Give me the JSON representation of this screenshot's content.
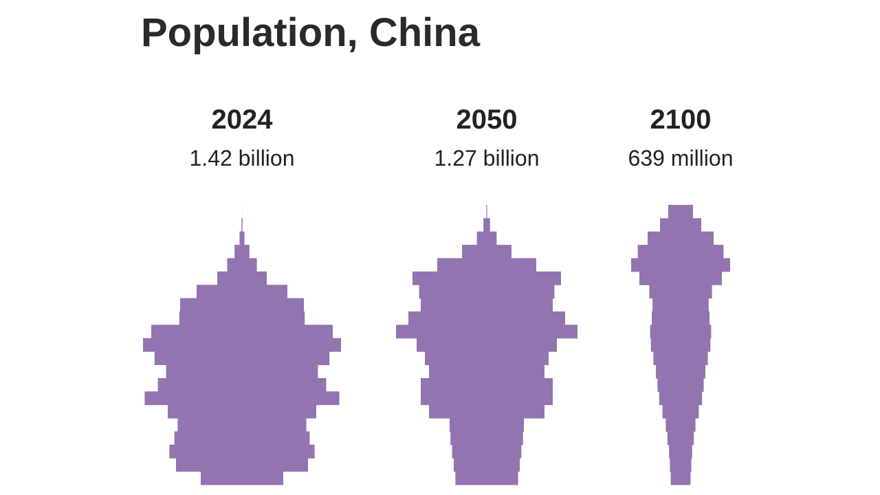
{
  "title": "Population, China",
  "chart_data": [
    {
      "type": "pyramid",
      "title": "2024",
      "subtitle": "1.42 billion",
      "color": "#9274b0",
      "values": [
        50,
        80,
        88,
        82,
        78,
        90,
        118,
        102,
        92,
        106,
        120,
        110,
        76,
        75,
        55,
        30,
        18,
        9,
        3,
        0.6,
        0.05
      ]
    },
    {
      "type": "pyramid",
      "title": "2050",
      "subtitle": "1.27 billion",
      "color": "#9274b0",
      "values": [
        38,
        40,
        42,
        44,
        45,
        70,
        80,
        80,
        70,
        75,
        85,
        110,
        95,
        80,
        82,
        90,
        60,
        30,
        12,
        4,
        0.5
      ]
    },
    {
      "type": "pyramid",
      "title": "2100",
      "subtitle": "639 million",
      "color": "#9274b0",
      "values": [
        12,
        13,
        14,
        16,
        18,
        22,
        26,
        28,
        30,
        33,
        36,
        37,
        35,
        34,
        38,
        50,
        60,
        52,
        40,
        25,
        15
      ]
    }
  ]
}
